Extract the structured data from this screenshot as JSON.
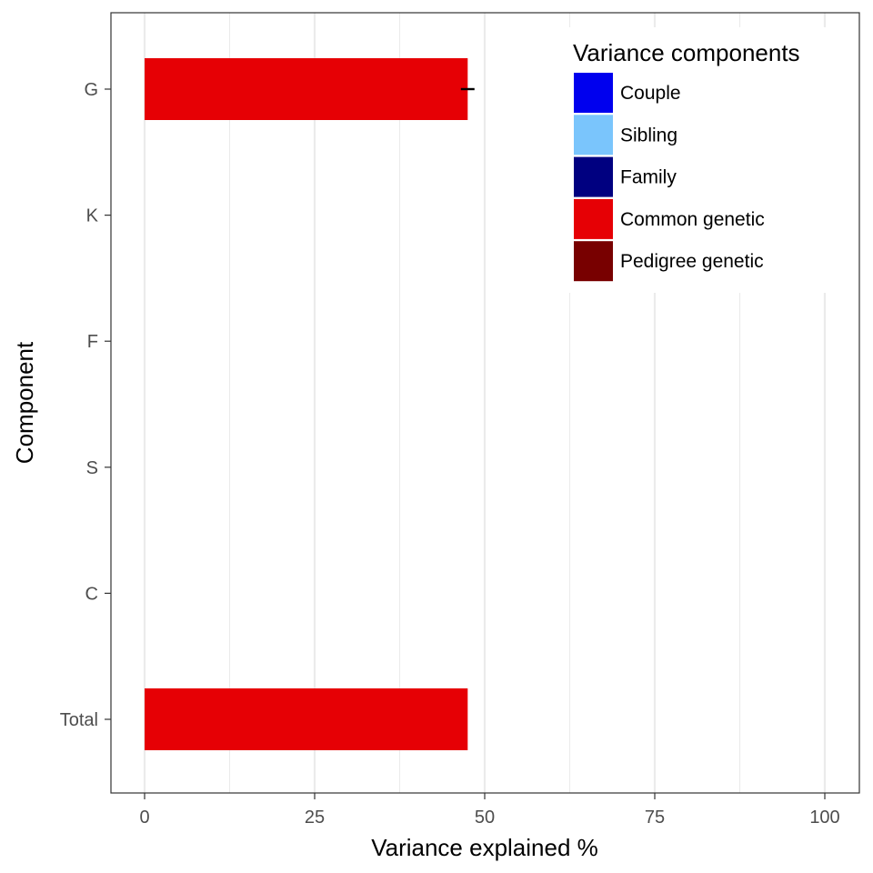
{
  "chart_data": {
    "type": "bar",
    "orientation": "horizontal",
    "xlabel": "Variance explained %",
    "ylabel": "Component",
    "xlim": [
      0,
      100
    ],
    "x_ticks": [
      0,
      25,
      50,
      75,
      100
    ],
    "grid": true,
    "categories": [
      "G",
      "K",
      "F",
      "S",
      "C",
      "Total"
    ],
    "series": [
      {
        "name": "Common genetic",
        "values": [
          47.5,
          null,
          null,
          null,
          null,
          47.5
        ],
        "error": [
          1.0,
          null,
          null,
          null,
          null,
          null
        ]
      }
    ],
    "legend": {
      "title": "Variance components",
      "placement": "top-right",
      "items": [
        {
          "label": "Couple",
          "color": "#0000EE"
        },
        {
          "label": "Sibling",
          "color": "#7AC5FC"
        },
        {
          "label": "Family",
          "color": "#000080"
        },
        {
          "label": "Common genetic",
          "color": "#E60005"
        },
        {
          "label": "Pedigree genetic",
          "color": "#780000"
        }
      ]
    },
    "colors": {
      "bar": "#E60005",
      "panel_border": "#333333",
      "grid": "#EBEBEB",
      "tick_text": "#4D4D4D"
    }
  }
}
